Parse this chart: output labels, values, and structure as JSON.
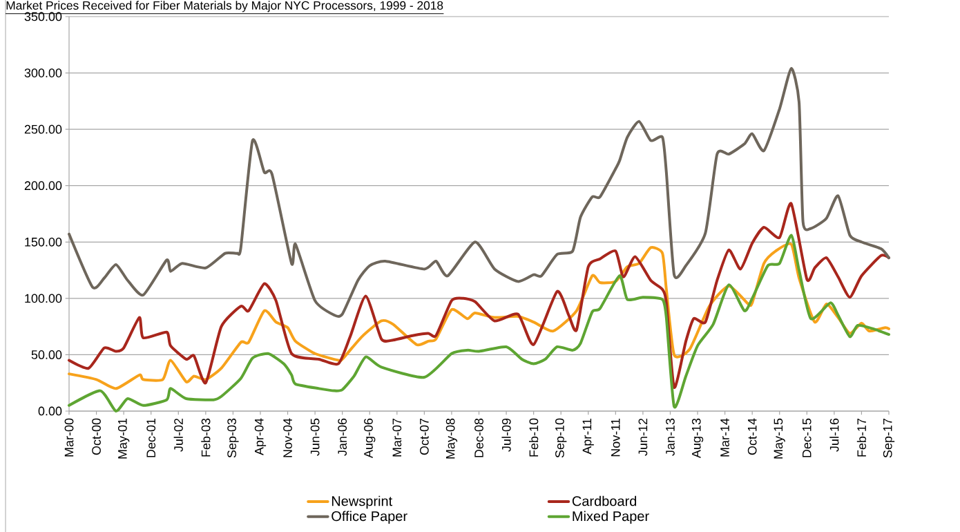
{
  "chart_data": {
    "type": "line",
    "title": "Market Prices Received for Fiber Materials by Major NYC Processors, 1999 - 2018",
    "xlim": [
      "2000-03",
      "2017-09"
    ],
    "xticks": [
      {
        "value": "2000-03",
        "label": "Mar-00"
      },
      {
        "value": "2000-10",
        "label": "Oct-00"
      },
      {
        "value": "2001-05",
        "label": "May-01"
      },
      {
        "value": "2001-12",
        "label": "Dec-01"
      },
      {
        "value": "2002-07",
        "label": "Jul-02"
      },
      {
        "value": "2003-02",
        "label": "Feb-03"
      },
      {
        "value": "2003-09",
        "label": "Sep-03"
      },
      {
        "value": "2004-04",
        "label": "Apr-04"
      },
      {
        "value": "2004-11",
        "label": "Nov-04"
      },
      {
        "value": "2005-06",
        "label": "Jun-05"
      },
      {
        "value": "2006-01",
        "label": "Jan-06"
      },
      {
        "value": "2006-08",
        "label": "Aug-06"
      },
      {
        "value": "2007-03",
        "label": "Mar-07"
      },
      {
        "value": "2007-10",
        "label": "Oct-07"
      },
      {
        "value": "2008-05",
        "label": "May-08"
      },
      {
        "value": "2008-12",
        "label": "Dec-08"
      },
      {
        "value": "2009-07",
        "label": "Jul-09"
      },
      {
        "value": "2010-02",
        "label": "Feb-10"
      },
      {
        "value": "2010-09",
        "label": "Sep-10"
      },
      {
        "value": "2011-04",
        "label": "Apr-11"
      },
      {
        "value": "2011-11",
        "label": "Nov-11"
      },
      {
        "value": "2012-06",
        "label": "Jun-12"
      },
      {
        "value": "2013-01",
        "label": "Jan-13"
      },
      {
        "value": "2013-08",
        "label": "Aug-13"
      },
      {
        "value": "2014-03",
        "label": "Mar-14"
      },
      {
        "value": "2014-10",
        "label": "Oct-14"
      },
      {
        "value": "2015-05",
        "label": "May-15"
      },
      {
        "value": "2015-12",
        "label": "Dec-15"
      },
      {
        "value": "2016-07",
        "label": "Jul-16"
      },
      {
        "value": "2017-02",
        "label": "Feb-17"
      },
      {
        "value": "2017-09",
        "label": "Sep-17"
      }
    ],
    "ylim": [
      0,
      350
    ],
    "yticks": [
      {
        "value": 0,
        "label": "0.00"
      },
      {
        "value": 50,
        "label": "50.00"
      },
      {
        "value": 100,
        "label": "100.00"
      },
      {
        "value": 150,
        "label": "150.00"
      },
      {
        "value": 200,
        "label": "200.00"
      },
      {
        "value": 250,
        "label": "250.00"
      },
      {
        "value": 300,
        "label": "300.00"
      },
      {
        "value": 350,
        "label": "350.00"
      }
    ],
    "grid": "y",
    "legend": "bottom",
    "marker": "none",
    "line_style": "solid",
    "series": [
      {
        "name": "Newsprint",
        "color": "#f7a21b",
        "x": [
          "2000-03",
          "2000-10",
          "2001-03",
          "2001-09",
          "2001-10",
          "2002-03",
          "2002-05",
          "2002-09",
          "2002-11",
          "2003-02",
          "2003-06",
          "2003-11",
          "2004-01",
          "2004-05",
          "2004-08",
          "2004-11",
          "2005-01",
          "2005-06",
          "2005-12",
          "2006-01",
          "2006-06",
          "2006-11",
          "2007-02",
          "2007-08",
          "2007-11",
          "2008-01",
          "2008-05",
          "2008-09",
          "2008-11",
          "2009-04",
          "2009-10",
          "2010-02",
          "2010-07",
          "2011-01",
          "2011-05",
          "2011-07",
          "2011-11",
          "2012-02",
          "2012-05",
          "2012-08",
          "2012-11",
          "2012-12",
          "2013-02",
          "2013-06",
          "2013-11",
          "2014-04",
          "2014-09",
          "2014-10",
          "2015-01",
          "2015-04",
          "2015-08",
          "2015-10",
          "2016-02",
          "2016-05",
          "2016-08",
          "2016-11",
          "2017-02",
          "2017-04",
          "2017-08",
          "2017-09"
        ],
        "values": [
          33,
          28,
          20,
          32,
          28,
          28,
          45,
          26,
          31,
          28,
          38,
          61,
          61,
          89,
          79,
          74,
          62,
          51,
          45,
          46,
          66,
          80,
          77,
          59,
          62,
          64,
          90,
          82,
          87,
          83,
          84,
          79,
          71,
          89,
          120,
          114,
          115,
          128,
          131,
          145,
          140,
          108,
          50,
          55,
          93,
          111,
          95,
          96,
          131,
          142,
          148,
          118,
          79,
          95,
          83,
          69,
          78,
          71,
          74,
          73
        ]
      },
      {
        "name": "Cardboard",
        "color": "#a8261c",
        "x": [
          "2000-03",
          "2000-08",
          "2000-12",
          "2001-03",
          "2001-05",
          "2001-09",
          "2001-10",
          "2002-04",
          "2002-05",
          "2002-09",
          "2002-11",
          "2003-02",
          "2003-06",
          "2003-11",
          "2004-01",
          "2004-05",
          "2004-08",
          "2004-12",
          "2005-07",
          "2005-12",
          "2006-03",
          "2006-07",
          "2006-11",
          "2007-02",
          "2007-07",
          "2007-11",
          "2008-01",
          "2008-05",
          "2008-08",
          "2008-11",
          "2009-04",
          "2009-10",
          "2010-02",
          "2010-08",
          "2010-11",
          "2011-01",
          "2011-04",
          "2011-07",
          "2011-11",
          "2012-01",
          "2012-04",
          "2012-08",
          "2012-11",
          "2012-12",
          "2013-02",
          "2013-05",
          "2013-07",
          "2013-10",
          "2014-01",
          "2014-04",
          "2014-07",
          "2014-10",
          "2015-01",
          "2015-05",
          "2015-08",
          "2015-12",
          "2016-02",
          "2016-05",
          "2016-08",
          "2016-11",
          "2017-02",
          "2017-07",
          "2017-09"
        ],
        "values": [
          45,
          38,
          56,
          53,
          56,
          83,
          65,
          70,
          58,
          46,
          49,
          25,
          75,
          93,
          89,
          113,
          98,
          51,
          46,
          42,
          66,
          102,
          64,
          63,
          67,
          69,
          67,
          98,
          100,
          97,
          80,
          86,
          59,
          106,
          85,
          72,
          128,
          135,
          142,
          119,
          137,
          116,
          108,
          96,
          21,
          62,
          82,
          79,
          116,
          143,
          126,
          149,
          163,
          154,
          184,
          117,
          127,
          136,
          119,
          101,
          120,
          138,
          136
        ]
      },
      {
        "name": "Office Paper",
        "color": "#6e665b",
        "x": [
          "2000-03",
          "2000-09",
          "2000-12",
          "2001-03",
          "2001-06",
          "2001-10",
          "2002-04",
          "2002-05",
          "2002-08",
          "2003-02",
          "2003-07",
          "2003-10",
          "2003-11",
          "2004-02",
          "2004-05",
          "2004-07",
          "2004-12",
          "2005-01",
          "2005-06",
          "2005-11",
          "2006-01",
          "2006-05",
          "2006-08",
          "2006-12",
          "2007-10",
          "2008-01",
          "2008-04",
          "2008-11",
          "2009-04",
          "2009-10",
          "2010-02",
          "2010-04",
          "2010-08",
          "2010-12",
          "2011-02",
          "2011-05",
          "2011-07",
          "2011-11",
          "2011-12",
          "2012-02",
          "2012-05",
          "2012-08",
          "2012-11",
          "2012-12",
          "2013-02",
          "2013-05",
          "2013-10",
          "2014-01",
          "2014-04",
          "2014-08",
          "2014-10",
          "2015-01",
          "2015-05",
          "2015-08",
          "2015-10",
          "2015-11",
          "2016-01",
          "2016-05",
          "2016-08",
          "2016-11",
          "2017-02",
          "2017-07",
          "2017-09"
        ],
        "values": [
          157,
          110,
          118,
          130,
          116,
          103,
          134,
          124,
          131,
          127,
          140,
          140,
          145,
          240,
          212,
          210,
          131,
          148,
          98,
          85,
          86,
          116,
          129,
          133,
          126,
          133,
          120,
          150,
          126,
          115,
          121,
          120,
          139,
          142,
          172,
          190,
          190,
          215,
          222,
          243,
          257,
          240,
          243,
          212,
          121,
          129,
          158,
          228,
          228,
          237,
          246,
          231,
          268,
          304,
          274,
          168,
          162,
          171,
          191,
          156,
          150,
          144,
          136
        ]
      },
      {
        "name": "Mixed Paper",
        "color": "#5ea532",
        "x": [
          "2000-03",
          "2000-11",
          "2001-03",
          "2001-06",
          "2001-10",
          "2002-04",
          "2002-05",
          "2002-09",
          "2003-04",
          "2003-06",
          "2003-11",
          "2004-02",
          "2004-06",
          "2004-10",
          "2004-12",
          "2005-01",
          "2005-07",
          "2005-11",
          "2006-01",
          "2006-04",
          "2006-07",
          "2006-11",
          "2007-10",
          "2008-05",
          "2008-09",
          "2008-12",
          "2009-07",
          "2009-11",
          "2010-02",
          "2010-05",
          "2010-08",
          "2010-12",
          "2011-02",
          "2011-05",
          "2011-07",
          "2011-12",
          "2012-02",
          "2012-06",
          "2012-11",
          "2012-12",
          "2013-02",
          "2013-05",
          "2013-08",
          "2013-12",
          "2014-04",
          "2014-08",
          "2014-10",
          "2015-02",
          "2015-05",
          "2015-08",
          "2015-10",
          "2016-01",
          "2016-06",
          "2016-08",
          "2016-11",
          "2017-01",
          "2017-05",
          "2017-09"
        ],
        "values": [
          5,
          18,
          0,
          11,
          5,
          10,
          20,
          11,
          10,
          13,
          29,
          47,
          51,
          42,
          32,
          24,
          20,
          18,
          19,
          31,
          48,
          39,
          30,
          51,
          54,
          53,
          57,
          46,
          42,
          46,
          57,
          54,
          60,
          88,
          91,
          120,
          99,
          101,
          99,
          83,
          4,
          31,
          58,
          77,
          112,
          89,
          100,
          129,
          131,
          156,
          125,
          82,
          96,
          85,
          66,
          76,
          73,
          68
        ]
      }
    ]
  }
}
